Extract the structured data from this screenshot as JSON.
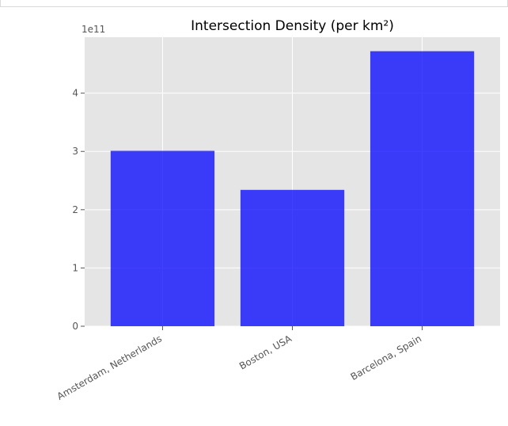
{
  "chart_data": {
    "type": "bar",
    "title": "Intersection Density (per km²)",
    "xlabel": "",
    "ylabel": "",
    "categories": [
      "Amsterdam, Netherlands",
      "Boston, USA",
      "Barcelona, Spain"
    ],
    "values": [
      301000000000,
      234000000000,
      472000000000
    ],
    "ylim": [
      0,
      496000000000
    ],
    "y_ticks": [
      0,
      100000000000,
      200000000000,
      300000000000,
      400000000000
    ],
    "y_tick_labels": [
      "0",
      "1",
      "2",
      "3",
      "4"
    ],
    "y_offset_label": "1e11",
    "grid": true,
    "style": "ggplot",
    "bar_color": "#0000ff",
    "bar_alpha": 0.75,
    "background_color": "#e5e5e5"
  }
}
